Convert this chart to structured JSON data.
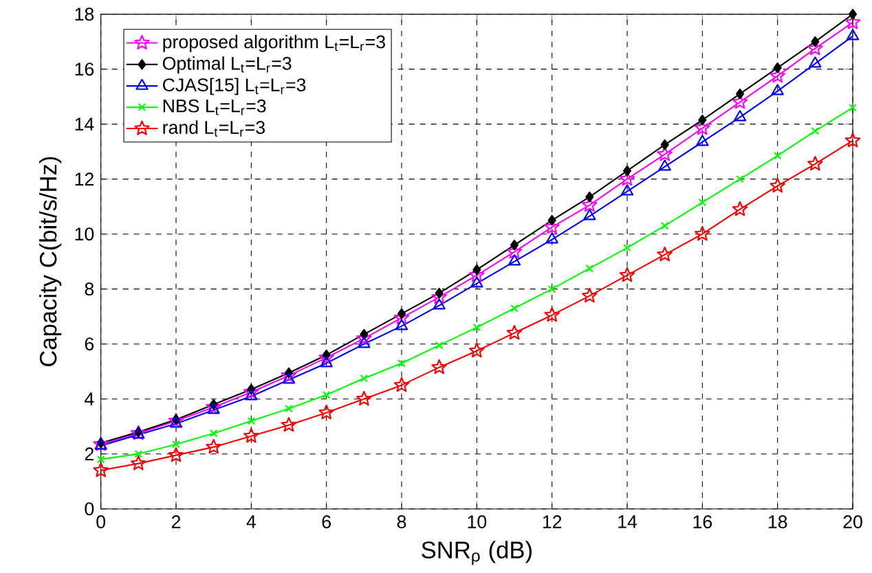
{
  "chart_data": {
    "type": "line",
    "xlabel": "SNR$_{ρ}$ (dB)",
    "ylabel": "Capacity C(bit/s/Hz)",
    "x": [
      0,
      1,
      2,
      3,
      4,
      5,
      6,
      7,
      8,
      9,
      10,
      11,
      12,
      13,
      14,
      15,
      16,
      17,
      18,
      19,
      20
    ],
    "xlim": [
      0,
      20
    ],
    "xticks": [
      0,
      2,
      4,
      6,
      8,
      10,
      12,
      14,
      16,
      18,
      20
    ],
    "ylim": [
      0,
      18
    ],
    "yticks": [
      0,
      2,
      4,
      6,
      8,
      10,
      12,
      14,
      16,
      18
    ],
    "grid": true,
    "legend": "top left",
    "line_style": "solid",
    "series": [
      {
        "name": "proposed algorithm L$_{t}$=L$_{r}$=3",
        "color": "#ff00ff",
        "marker": "star",
        "values": [
          2.35,
          2.75,
          3.2,
          3.7,
          4.25,
          4.85,
          5.5,
          6.2,
          6.95,
          7.7,
          8.5,
          9.35,
          10.25,
          11.05,
          12.0,
          12.9,
          13.85,
          14.8,
          15.75,
          16.75,
          17.7
        ]
      },
      {
        "name": "Optimal L$_{t}$=L$_{r}$=3",
        "color": "#000000",
        "marker": "diamond",
        "values": [
          2.4,
          2.8,
          3.25,
          3.8,
          4.35,
          4.95,
          5.6,
          6.35,
          7.1,
          7.85,
          8.7,
          9.6,
          10.5,
          11.35,
          12.3,
          13.25,
          14.15,
          15.1,
          16.05,
          17.0,
          18.0
        ]
      },
      {
        "name": "CJAS[15] L$_{t}$=L$_{r}$=3",
        "color": "#0000ff",
        "marker": "triangle",
        "values": [
          2.3,
          2.7,
          3.1,
          3.6,
          4.1,
          4.7,
          5.3,
          6.0,
          6.65,
          7.4,
          8.2,
          9.0,
          9.8,
          10.65,
          11.55,
          12.45,
          13.35,
          14.25,
          15.2,
          16.2,
          17.2
        ]
      },
      {
        "name": "NBS L$_{t}$=L$_{r}$=3",
        "color": "#00ff00",
        "marker": "cross",
        "values": [
          1.8,
          2.0,
          2.35,
          2.75,
          3.2,
          3.65,
          4.15,
          4.75,
          5.3,
          5.95,
          6.6,
          7.3,
          8.0,
          8.75,
          9.5,
          10.3,
          11.15,
          12.0,
          12.85,
          13.75,
          14.6
        ]
      },
      {
        "name": "rand L$_{t}$=L$_{r}$=3",
        "color": "#ff0000",
        "marker": "star",
        "values": [
          1.4,
          1.65,
          1.95,
          2.25,
          2.65,
          3.05,
          3.5,
          4.0,
          4.5,
          5.15,
          5.75,
          6.4,
          7.05,
          7.75,
          8.5,
          9.25,
          10.0,
          10.9,
          11.75,
          12.55,
          13.4
        ]
      }
    ]
  }
}
